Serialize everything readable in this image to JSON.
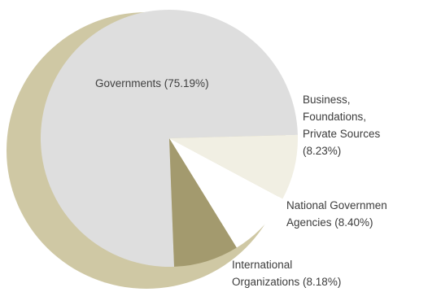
{
  "chart_data": {
    "type": "pie",
    "slices": [
      {
        "label": "Governments (75.19%)",
        "value": 75.19,
        "color": "#dedede"
      },
      {
        "label": "Business, Foundations, Private Sources (8.23%)",
        "value": 8.23,
        "color": "#f1efe3"
      },
      {
        "label": "National Government Agencies (8.40%)",
        "value": 8.4,
        "color": "#ffffff"
      },
      {
        "label": "International Organizations (8.18%)",
        "value": 8.18,
        "color": "#a39a6e"
      }
    ],
    "labels": {
      "governments": "Governments (75.19%)",
      "business": [
        "Business,",
        "Foundations,",
        "Private Sources",
        "(8.23%)"
      ],
      "national": [
        "National Governmen",
        "Agencies (8.40%)"
      ],
      "international": [
        "International",
        "Organizations (8.18%)"
      ]
    },
    "colors": {
      "shadow": "#cfc8a4",
      "text": "#3c3c3c"
    }
  }
}
